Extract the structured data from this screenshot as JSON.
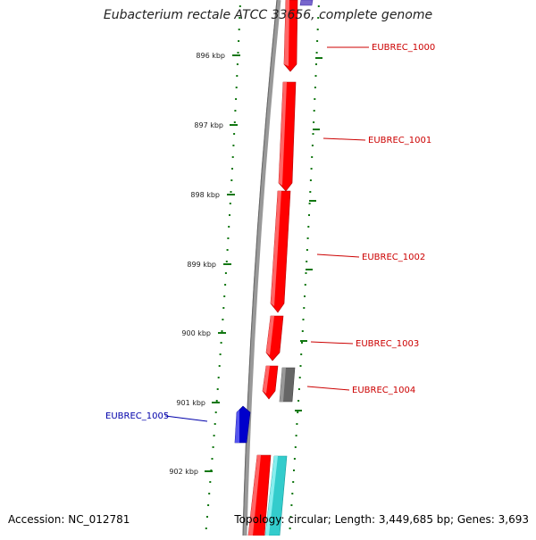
{
  "title": "Eubacterium rectale ATCC 33656, complete genome",
  "footer": {
    "accession": "Accession: NC_012781",
    "summary": "Topology: circular; Length: 3,449,685 bp; Genes: 3,693"
  },
  "colors": {
    "forward_gene": "#ff0000",
    "reverse_gene": "#0000cc",
    "grey_gene": "#666666",
    "cyan_gene": "#33cccc",
    "purple_gene": "#7766cc",
    "label_forward": "#cc0000",
    "label_reverse": "#0000aa",
    "tick": "#117711",
    "backbone": "#888888"
  },
  "kbp_ticks": [
    "896 kbp",
    "897 kbp",
    "898 kbp",
    "899 kbp",
    "900 kbp",
    "901 kbp",
    "902 kbp"
  ],
  "genes": [
    {
      "name": "EUBREC_1000",
      "strand": "forward"
    },
    {
      "name": "EUBREC_1001",
      "strand": "forward"
    },
    {
      "name": "EUBREC_1002",
      "strand": "forward"
    },
    {
      "name": "EUBREC_1003",
      "strand": "forward"
    },
    {
      "name": "EUBREC_1004",
      "strand": "forward"
    },
    {
      "name": "EUBREC_1005",
      "strand": "reverse"
    }
  ]
}
